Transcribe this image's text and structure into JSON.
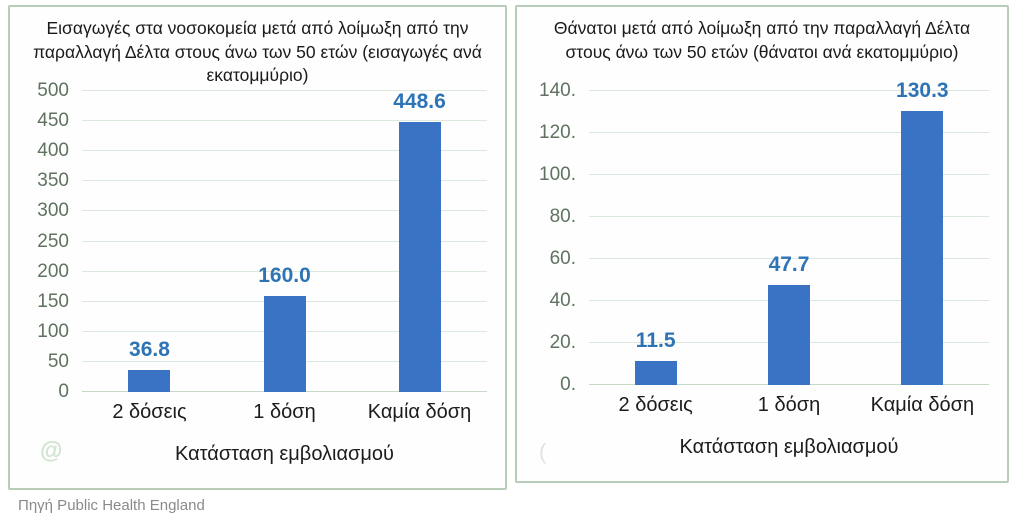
{
  "page": {
    "source_caption": "Πηγή Public Health England"
  },
  "colors": {
    "panel_border": "#b7cdb7",
    "gridline": "#dce8dc",
    "ytick_text": "#5f7260",
    "bar": "#3B73C4",
    "value_label": "#2E74B5",
    "title_text": "#1a1a1a",
    "source_text": "#8a8a8a"
  },
  "watermarks": {
    "left_panel": "@",
    "right_panel": "("
  },
  "chart_data": [
    {
      "type": "bar",
      "title": "Εισαγωγές στα νοσοκομεία μετά από λοίμωξη από την παραλλαγή Δέλτα στους άνω των 50 ετών (εισαγωγές ανά εκατομμύριο)",
      "categories": [
        "2 δόσεις",
        "1 δόση",
        "Καμία δόση"
      ],
      "values": [
        36.8,
        160.0,
        448.6
      ],
      "value_labels": [
        "36.8",
        "160.0",
        "448.6"
      ],
      "xlabel": "Κατάσταση εμβολιασμού",
      "ylabel": "",
      "ylim": [
        0,
        500
      ],
      "ytick_step": 50,
      "ytick_labels": [
        "0",
        "50",
        "100",
        "150",
        "200",
        "250",
        "300",
        "350",
        "400",
        "450",
        "500"
      ],
      "grid": true,
      "legend": null,
      "bar_color": "#3B73C4",
      "value_label_color": "#2E74B5"
    },
    {
      "type": "bar",
      "title": "Θάνατοι μετά από λοίμωξη από την παραλλαγή Δέλτα στους άνω των 50 ετών (θάνατοι ανά εκατομμύριο)",
      "categories": [
        "2 δόσεις",
        "1 δόση",
        "Καμία δόση"
      ],
      "values": [
        11.5,
        47.7,
        130.3
      ],
      "value_labels": [
        "11.5",
        "47.7",
        "130.3"
      ],
      "xlabel": "Κατάσταση εμβολιασμού",
      "ylabel": "",
      "ylim": [
        0,
        140
      ],
      "ytick_step": 20,
      "ytick_labels": [
        "0.",
        "20.",
        "40.",
        "60.",
        "80.",
        "100.",
        "120.",
        "140."
      ],
      "grid": true,
      "legend": null,
      "bar_color": "#3B73C4",
      "value_label_color": "#2E74B5"
    }
  ]
}
